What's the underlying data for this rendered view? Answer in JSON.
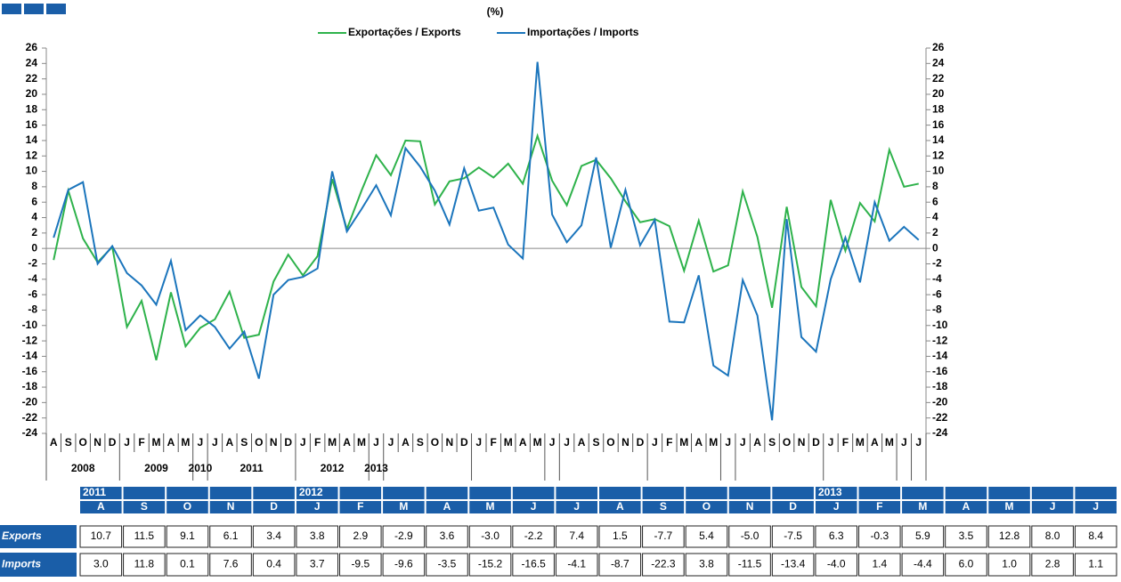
{
  "chart_data": {
    "type": "line",
    "title": "(%)",
    "categories": [
      "A",
      "S",
      "O",
      "N",
      "D",
      "J",
      "F",
      "M",
      "A",
      "M",
      "J",
      "J",
      "A",
      "S",
      "O",
      "N",
      "D",
      "J",
      "F",
      "M",
      "A",
      "M",
      "J",
      "J",
      "A",
      "S",
      "O",
      "N",
      "D",
      "J",
      "F",
      "M",
      "A",
      "M",
      "J",
      "J",
      "A",
      "S",
      "O",
      "N",
      "D",
      "J",
      "F",
      "M",
      "A",
      "M",
      "J",
      "J",
      "A",
      "S",
      "O",
      "N",
      "D",
      "J",
      "F",
      "M",
      "A",
      "M",
      "J",
      "J"
    ],
    "year_labels": [
      "2008",
      "2009",
      "2010",
      "2011",
      "2012",
      "2013"
    ],
    "series": [
      {
        "name": "Exportações / Exports",
        "color": "#2eb24b",
        "values": [
          -1.5,
          7.5,
          1.3,
          -1.8,
          0.2,
          -10.2,
          -6.8,
          -14.5,
          -5.7,
          -12.7,
          -10.3,
          -9.2,
          -5.6,
          -11.6,
          -11.2,
          -4.3,
          -0.8,
          -3.5,
          -1.0,
          9.0,
          2.5,
          7.5,
          12.1,
          9.5,
          14.0,
          13.9,
          5.7,
          8.7,
          9.1,
          10.5,
          9.2,
          11.0,
          8.4,
          14.6,
          8.8,
          5.6,
          10.7,
          11.5,
          9.1,
          6.1,
          3.4,
          3.8,
          2.9,
          -2.9,
          3.6,
          -3.0,
          -2.2,
          7.4,
          1.5,
          -7.7,
          5.4,
          -5.0,
          -7.5,
          6.3,
          -0.3,
          5.9,
          3.5,
          12.8,
          8.0,
          8.4
        ]
      },
      {
        "name": "Importações / Imports",
        "color": "#1b75bc",
        "values": [
          1.4,
          7.6,
          8.6,
          -2.0,
          0.3,
          -3.2,
          -4.8,
          -7.3,
          -1.6,
          -10.6,
          -8.7,
          -10.2,
          -13.0,
          -10.8,
          -16.9,
          -6.0,
          -4.1,
          -3.7,
          -2.6,
          10.0,
          2.2,
          5.1,
          8.2,
          4.3,
          13.0,
          10.6,
          7.5,
          3.1,
          10.4,
          4.9,
          5.3,
          0.5,
          -1.3,
          24.2,
          4.4,
          0.8,
          3.0,
          11.8,
          0.1,
          7.6,
          0.4,
          3.7,
          -9.5,
          -9.6,
          -3.5,
          -15.2,
          -16.5,
          -4.1,
          -8.7,
          -22.3,
          3.8,
          -11.5,
          -13.4,
          -4.0,
          1.4,
          -4.4,
          6.0,
          1.0,
          2.8,
          1.1
        ]
      }
    ],
    "ylim": [
      -24,
      26
    ],
    "yticks": [
      -24,
      -22,
      -20,
      -18,
      -16,
      -14,
      -12,
      -10,
      -8,
      -6,
      -4,
      -2,
      0,
      2,
      4,
      6,
      8,
      10,
      12,
      14,
      16,
      18,
      20,
      22,
      24,
      26
    ],
    "grid": false
  },
  "table": {
    "years": [
      "2011",
      null,
      null,
      null,
      null,
      "2012",
      null,
      null,
      null,
      null,
      null,
      null,
      null,
      null,
      null,
      null,
      null,
      "2013",
      null,
      null,
      null,
      null,
      null,
      null
    ],
    "months": [
      "A",
      "S",
      "O",
      "N",
      "D",
      "J",
      "F",
      "M",
      "A",
      "M",
      "J",
      "J",
      "A",
      "S",
      "O",
      "N",
      "D",
      "J",
      "F",
      "M",
      "A",
      "M",
      "J",
      "J"
    ],
    "rows": [
      {
        "label": "Exports",
        "cells": [
          "10.7",
          "11.5",
          "9.1",
          "6.1",
          "3.4",
          "3.8",
          "2.9",
          "-2.9",
          "3.6",
          "-3.0",
          "-2.2",
          "7.4",
          "1.5",
          "-7.7",
          "5.4",
          "-5.0",
          "-7.5",
          "6.3",
          "-0.3",
          "5.9",
          "3.5",
          "12.8",
          "8.0",
          "8.4"
        ]
      },
      {
        "label": "Imports",
        "cells": [
          "3.0",
          "11.8",
          "0.1",
          "7.6",
          "0.4",
          "3.7",
          "-9.5",
          "-9.6",
          "-3.5",
          "-15.2",
          "-16.5",
          "-4.1",
          "-8.7",
          "-22.3",
          "3.8",
          "-11.5",
          "-13.4",
          "-4.0",
          "1.4",
          "-4.4",
          "6.0",
          "1.0",
          "2.8",
          "1.1"
        ]
      }
    ]
  }
}
